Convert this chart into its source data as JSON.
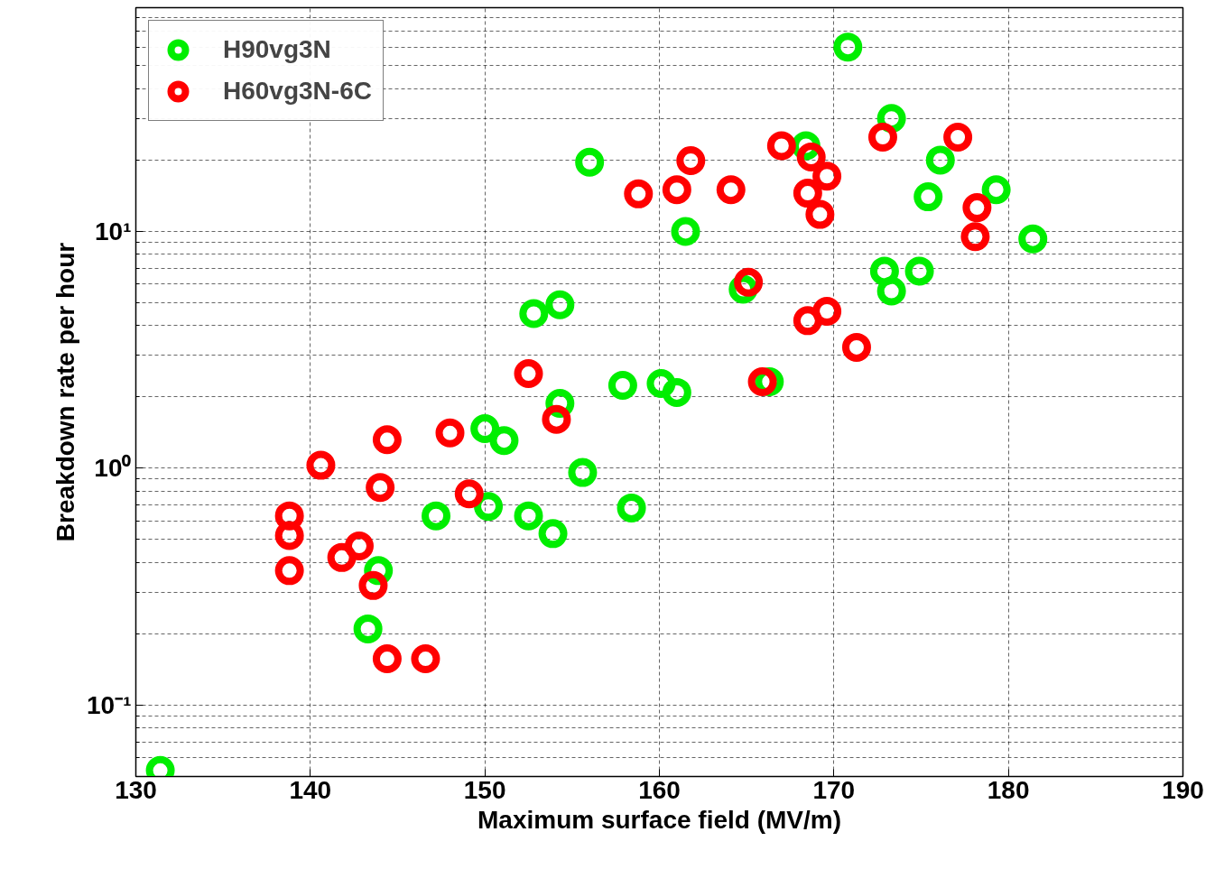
{
  "chart_data": {
    "type": "scatter",
    "xlabel": "Maximum surface field (MV/m)",
    "ylabel": "Breakdown rate per hour",
    "log": "y",
    "grid": true,
    "legend": "top left",
    "marker": "circle",
    "xlim": [
      130,
      190
    ],
    "xticks": [
      130,
      140,
      150,
      160,
      170,
      180,
      190
    ],
    "ylim": [
      0.05,
      88
    ],
    "yticks": [
      {
        "value": 0.1,
        "label": "10⁻¹"
      },
      {
        "value": 1,
        "label": "10⁰"
      },
      {
        "value": 10,
        "label": "10¹"
      },
      {
        "value": 0.05,
        "label": null
      },
      {
        "value": 0.06,
        "label": null
      },
      {
        "value": 0.07,
        "label": null
      },
      {
        "value": 0.08,
        "label": null
      },
      {
        "value": 0.09,
        "label": null
      },
      {
        "value": 0.2,
        "label": null
      },
      {
        "value": 0.3,
        "label": null
      },
      {
        "value": 0.4,
        "label": null
      },
      {
        "value": 0.5,
        "label": null
      },
      {
        "value": 0.6,
        "label": null
      },
      {
        "value": 0.7,
        "label": null
      },
      {
        "value": 0.8,
        "label": null
      },
      {
        "value": 0.9,
        "label": null
      },
      {
        "value": 2,
        "label": null
      },
      {
        "value": 3,
        "label": null
      },
      {
        "value": 4,
        "label": null
      },
      {
        "value": 5,
        "label": null
      },
      {
        "value": 6,
        "label": null
      },
      {
        "value": 7,
        "label": null
      },
      {
        "value": 8,
        "label": null
      },
      {
        "value": 9,
        "label": null
      },
      {
        "value": 20,
        "label": null
      },
      {
        "value": 30,
        "label": null
      },
      {
        "value": 40,
        "label": null
      },
      {
        "value": 50,
        "label": null
      },
      {
        "value": 60,
        "label": null
      },
      {
        "value": 70,
        "label": null
      },
      {
        "value": 80,
        "label": null
      }
    ],
    "series": [
      {
        "name": "H90vg3N",
        "color": "#00ee00",
        "x": [
          170.8,
          173.3,
          168.4,
          156.0,
          176.1,
          179.3,
          175.4,
          161.5,
          181.4,
          172.9,
          174.9,
          173.3,
          164.8,
          154.3,
          152.8,
          157.9,
          160.1,
          161.0,
          154.3,
          166.3,
          150.0,
          151.1,
          155.6,
          147.2,
          150.2,
          152.5,
          153.9,
          158.4,
          143.9,
          143.3,
          131.4
        ],
        "values": [
          60,
          30,
          23,
          19.6,
          20,
          15,
          14,
          10,
          9.3,
          6.8,
          6.8,
          5.6,
          5.7,
          4.9,
          4.5,
          2.24,
          2.28,
          2.09,
          1.88,
          2.32,
          1.47,
          1.31,
          0.96,
          0.63,
          0.69,
          0.63,
          0.53,
          0.68,
          0.37,
          0.21,
          0.053
        ]
      },
      {
        "name": "H60vg3N-6C",
        "color": "#ff0000",
        "x": [
          167.0,
          168.7,
          172.8,
          177.1,
          161.8,
          158.8,
          161.0,
          164.1,
          168.5,
          169.6,
          169.2,
          178.2,
          178.1,
          165.1,
          168.5,
          169.6,
          171.3,
          165.9,
          152.5,
          154.1,
          144.4,
          148.0,
          140.6,
          144.0,
          149.1,
          138.8,
          138.8,
          142.8,
          141.8,
          143.6,
          138.8,
          144.4,
          146.6
        ],
        "values": [
          23,
          20.6,
          25,
          25,
          19.9,
          14.4,
          15,
          15,
          14.5,
          17.1,
          11.8,
          12.6,
          9.5,
          6.1,
          4.2,
          4.6,
          3.24,
          2.32,
          2.51,
          1.61,
          1.32,
          1.41,
          1.03,
          0.83,
          0.78,
          0.63,
          0.52,
          0.47,
          0.42,
          0.32,
          0.37,
          0.157,
          0.157
        ]
      }
    ]
  }
}
